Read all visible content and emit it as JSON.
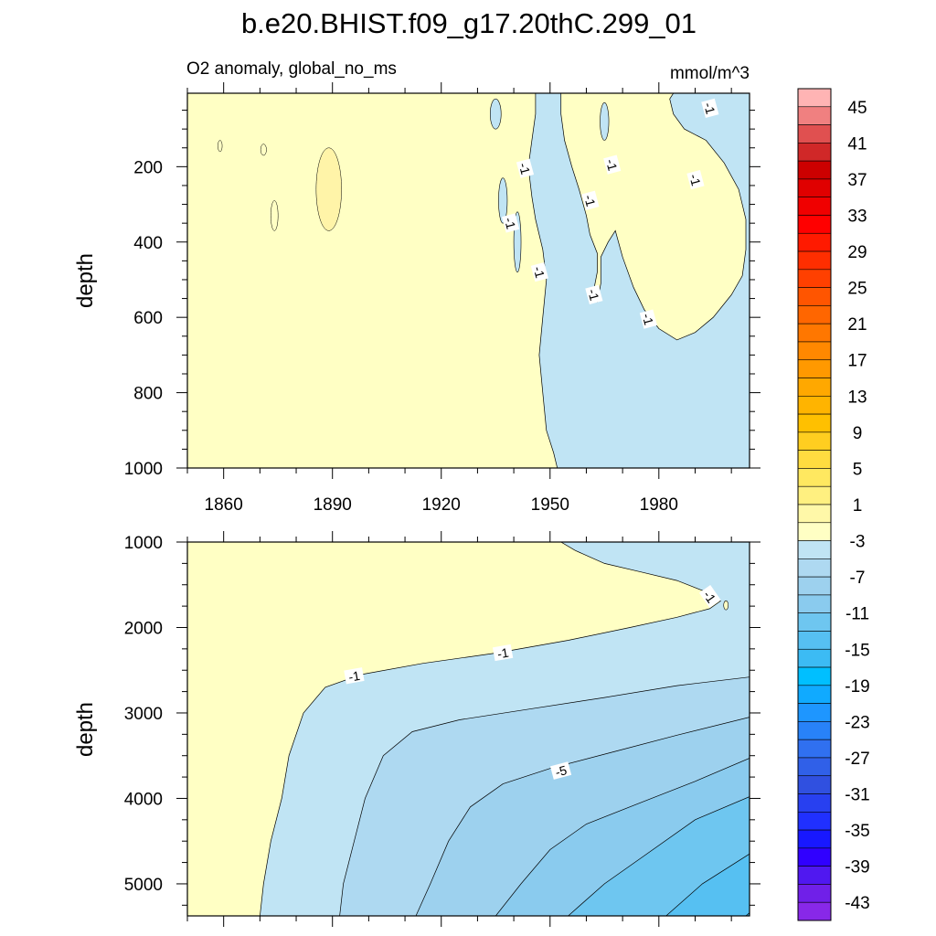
{
  "figure": {
    "title": "b.e20.BHIST.f09_g17.20thC.299_01",
    "subtitle_left": "O2 anomaly, global_no_ms",
    "subtitle_right": "mmol/m^3"
  },
  "colors": {
    "positive_fill": "#ffffc4",
    "minus1_band": "#c0e4f4",
    "minus3_band": "#aed9f1",
    "minus5_band": "#9dd1ee",
    "minus7_band": "#8acbee",
    "minus9_band": "#6ec6f0",
    "minus11_band": "#56c0f2",
    "minus13_band": "#3cbbf4"
  },
  "chart_data": [
    {
      "type": "contour",
      "panel": "upper",
      "ylabel": "depth",
      "x_tick_labels": [
        "1860",
        "1890",
        "1920",
        "1950",
        "1980"
      ],
      "y_tick_labels": [
        "200",
        "400",
        "600",
        "800",
        "1000"
      ],
      "xlim": [
        1850,
        2005
      ],
      "ylim": [
        1000,
        5
      ],
      "contour_labels": [
        {
          "text": "-1",
          "year": 1943,
          "depth": 205
        },
        {
          "text": "-1",
          "year": 1967,
          "depth": 195
        },
        {
          "text": "-1",
          "year": 1994,
          "depth": 45
        },
        {
          "text": "-1",
          "year": 1990,
          "depth": 235
        },
        {
          "text": "-1",
          "year": 1961,
          "depth": 290
        },
        {
          "text": "-1",
          "year": 1939,
          "depth": 350
        },
        {
          "text": "-1",
          "year": 1947,
          "depth": 480
        },
        {
          "text": "-1",
          "year": 1962,
          "depth": 540
        },
        {
          "text": "-1",
          "year": 1977,
          "depth": 605
        }
      ],
      "boundary_neg1": [
        [
          1952,
          1000
        ],
        [
          1951,
          960
        ],
        [
          1949,
          900
        ],
        [
          1948,
          800
        ],
        [
          1947,
          700
        ],
        [
          1948,
          600
        ],
        [
          1949,
          500
        ],
        [
          1948,
          420
        ],
        [
          1946,
          340
        ],
        [
          1945,
          280
        ],
        [
          1944,
          200
        ],
        [
          1945,
          130
        ],
        [
          1946,
          60
        ],
        [
          1946,
          5
        ],
        [
          1953,
          5
        ],
        [
          1953,
          60
        ],
        [
          1954,
          130
        ],
        [
          1956,
          200
        ],
        [
          1958,
          260
        ],
        [
          1960,
          330
        ],
        [
          1961,
          380
        ],
        [
          1963,
          430
        ],
        [
          1963,
          480
        ],
        [
          1962,
          530
        ],
        [
          1963,
          560
        ],
        [
          1964,
          510
        ],
        [
          1964,
          440
        ],
        [
          1966,
          400
        ],
        [
          1968,
          370
        ],
        [
          1970,
          440
        ],
        [
          1973,
          520
        ],
        [
          1976,
          580
        ],
        [
          1980,
          630
        ],
        [
          1985,
          660
        ],
        [
          1990,
          640
        ],
        [
          1995,
          600
        ],
        [
          2000,
          540
        ],
        [
          2003,
          490
        ],
        [
          2004,
          420
        ],
        [
          2004,
          340
        ],
        [
          2002,
          260
        ],
        [
          1998,
          190
        ],
        [
          1993,
          130
        ],
        [
          1987,
          100
        ],
        [
          1984,
          60
        ],
        [
          1983,
          20
        ],
        [
          1984,
          5
        ],
        [
          2005,
          5
        ],
        [
          2005,
          1000
        ]
      ],
      "negative_islands": [
        {
          "cx": 1935,
          "cy": 60,
          "rx": 1.5,
          "ry": 40
        },
        {
          "cx": 1937,
          "cy": 290,
          "rx": 1.2,
          "ry": 60
        },
        {
          "cx": 1965,
          "cy": 80,
          "rx": 1.2,
          "ry": 50
        },
        {
          "cx": 1941,
          "cy": 400,
          "rx": 1.0,
          "ry": 80
        }
      ],
      "positive_islands": [
        {
          "cx": 1889,
          "cy": 260,
          "rx": 3.5,
          "ry": 110
        },
        {
          "cx": 1874,
          "cy": 330,
          "rx": 1.0,
          "ry": 40
        },
        {
          "cx": 1859,
          "cy": 145,
          "rx": 0.6,
          "ry": 15
        },
        {
          "cx": 1871,
          "cy": 155,
          "rx": 0.8,
          "ry": 15
        }
      ]
    },
    {
      "type": "contour",
      "panel": "lower",
      "ylabel": "depth",
      "y_tick_labels": [
        "1000",
        "2000",
        "3000",
        "4000",
        "5000"
      ],
      "xlim": [
        1850,
        2005
      ],
      "ylim": [
        5375,
        1000
      ],
      "contour_labels": [
        {
          "text": "-1",
          "year": 1896,
          "depth": 2570
        },
        {
          "text": "-1",
          "year": 1937,
          "depth": 2300
        },
        {
          "text": "-1",
          "year": 1994,
          "depth": 1640
        },
        {
          "text": "-5",
          "year": 1953,
          "depth": 3680
        }
      ],
      "contour_levels": [
        {
          "level": -1,
          "points": [
            [
              1870,
              5375
            ],
            [
              1871,
              5000
            ],
            [
              1873,
              4500
            ],
            [
              1876,
              4000
            ],
            [
              1878,
              3500
            ],
            [
              1882,
              3000
            ],
            [
              1888,
              2700
            ],
            [
              1898,
              2550
            ],
            [
              1915,
              2420
            ],
            [
              1935,
              2300
            ],
            [
              1955,
              2150
            ],
            [
              1972,
              2000
            ],
            [
              1985,
              1880
            ],
            [
              1994,
              1780
            ],
            [
              1997,
              1690
            ],
            [
              1994,
              1600
            ],
            [
              1985,
              1450
            ],
            [
              1975,
              1350
            ],
            [
              1965,
              1250
            ],
            [
              1957,
              1100
            ],
            [
              1953,
              1000
            ]
          ]
        },
        {
          "level": -3,
          "points": [
            [
              1892,
              5375
            ],
            [
              1893,
              5000
            ],
            [
              1896,
              4500
            ],
            [
              1899,
              4000
            ],
            [
              1904,
              3500
            ],
            [
              1912,
              3220
            ],
            [
              1925,
              3080
            ],
            [
              1945,
              2950
            ],
            [
              1965,
              2820
            ],
            [
              1985,
              2680
            ],
            [
              2005,
              2580
            ]
          ]
        },
        {
          "level": -5,
          "points": [
            [
              1913,
              5375
            ],
            [
              1917,
              5000
            ],
            [
              1922,
              4500
            ],
            [
              1928,
              4100
            ],
            [
              1937,
              3830
            ],
            [
              1950,
              3650
            ],
            [
              1968,
              3450
            ],
            [
              1985,
              3260
            ],
            [
              2005,
              3050
            ]
          ]
        },
        {
          "level": -7,
          "points": [
            [
              1935,
              5375
            ],
            [
              1942,
              5000
            ],
            [
              1950,
              4600
            ],
            [
              1960,
              4300
            ],
            [
              1975,
              4050
            ],
            [
              1990,
              3800
            ],
            [
              2005,
              3530
            ]
          ]
        },
        {
          "level": -9,
          "points": [
            [
              1955,
              5375
            ],
            [
              1965,
              5000
            ],
            [
              1975,
              4700
            ],
            [
              1990,
              4250
            ],
            [
              2005,
              3980
            ]
          ]
        },
        {
          "level": -11,
          "points": [
            [
              1982,
              5375
            ],
            [
              1992,
              5000
            ],
            [
              2005,
              4650
            ]
          ]
        },
        {
          "level": -13,
          "points": [
            [
              2004,
              5375
            ],
            [
              2005,
              5340
            ]
          ]
        }
      ]
    },
    {
      "type": "colorbar",
      "tick_labels": [
        "45",
        "41",
        "37",
        "33",
        "29",
        "25",
        "21",
        "17",
        "13",
        "9",
        "5",
        "1",
        "-3",
        "-7",
        "-11",
        "-15",
        "-19",
        "-23",
        "-27",
        "-31",
        "-35",
        "-39",
        "-43"
      ],
      "band_colors": [
        "#ffb4b4",
        "#f08080",
        "#e05050",
        "#d02828",
        "#cc0000",
        "#e00000",
        "#f00000",
        "#ff0000",
        "#ff1a00",
        "#ff2e00",
        "#ff4000",
        "#ff5500",
        "#ff6600",
        "#ff7700",
        "#ff8800",
        "#ff9900",
        "#ffa800",
        "#ffb400",
        "#ffc000",
        "#ffce20",
        "#ffdc40",
        "#ffe860",
        "#fff080",
        "#fff8a8",
        "#ffffc4",
        "#c0e4f4",
        "#aed9f1",
        "#9dd1ee",
        "#8acbee",
        "#6ec6f0",
        "#56c0f2",
        "#3cbbf4",
        "#00bfff",
        "#10aaff",
        "#1e96ff",
        "#2882f8",
        "#3070f0",
        "#3060e8",
        "#3050e0",
        "#2840f0",
        "#2030ff",
        "#1818ff",
        "#3000ff",
        "#5018f0",
        "#7020e8",
        "#8828e8"
      ]
    }
  ]
}
